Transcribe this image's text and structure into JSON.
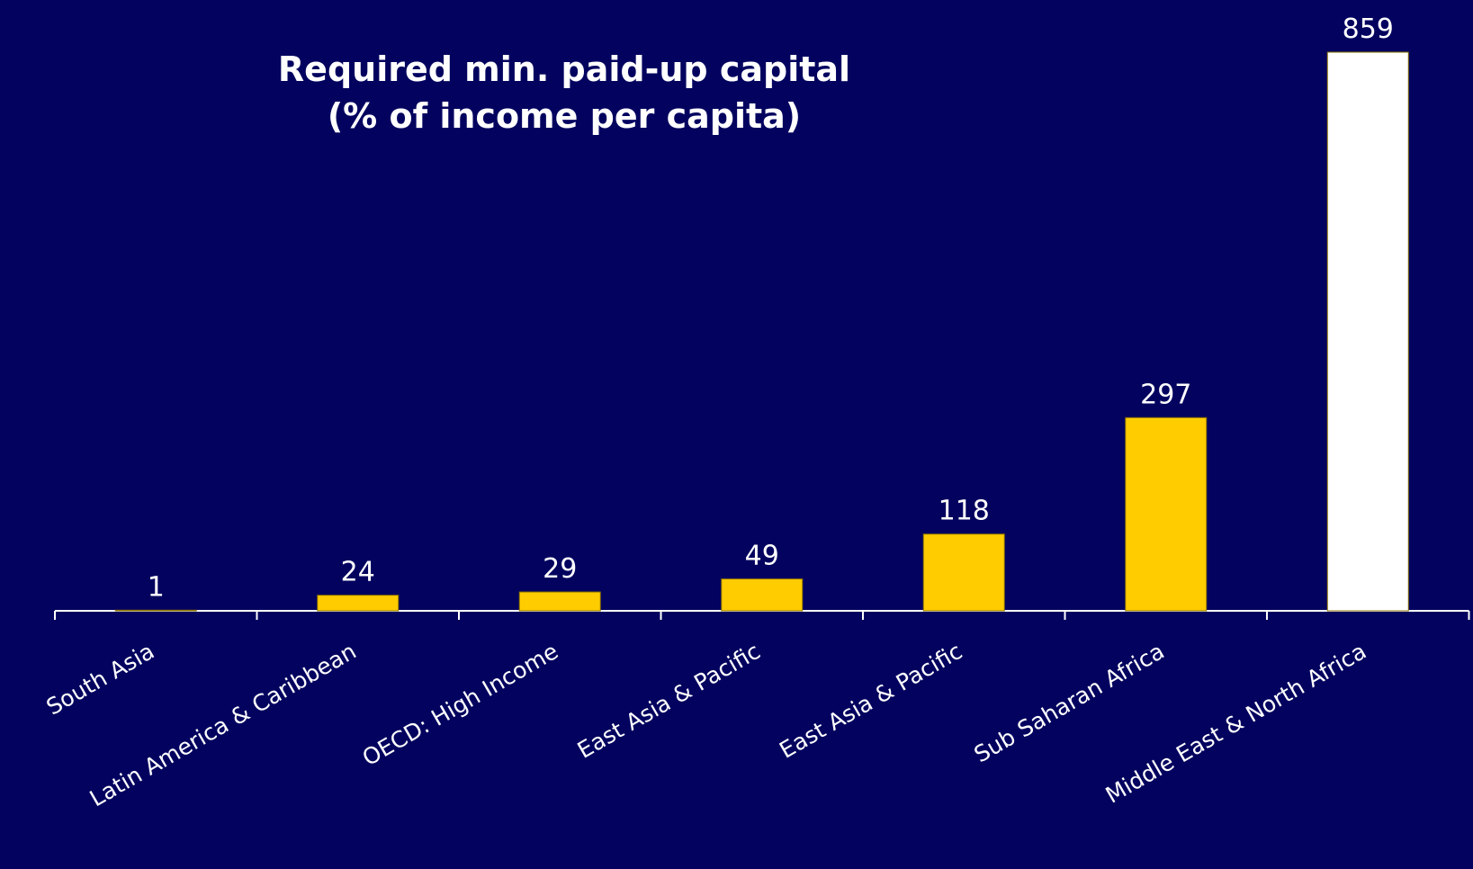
{
  "chart_data": {
    "type": "bar",
    "title": [
      "Required min. paid-up capital",
      "(% of income per capita)"
    ],
    "categories": [
      "South Asia",
      "Latin America & Caribbean",
      "OECD: High Income",
      "East Asia & Pacific",
      "East Asia & Pacific",
      "Sub Saharan Africa",
      "Middle East & North Africa"
    ],
    "values": [
      1,
      24,
      29,
      49,
      118,
      297,
      859
    ],
    "colors": [
      "#ffcc00",
      "#ffcc00",
      "#ffcc00",
      "#ffcc00",
      "#ffcc00",
      "#ffcc00",
      "#ffffff"
    ],
    "background": "#03035f",
    "title_color": "#ffcc00"
  }
}
